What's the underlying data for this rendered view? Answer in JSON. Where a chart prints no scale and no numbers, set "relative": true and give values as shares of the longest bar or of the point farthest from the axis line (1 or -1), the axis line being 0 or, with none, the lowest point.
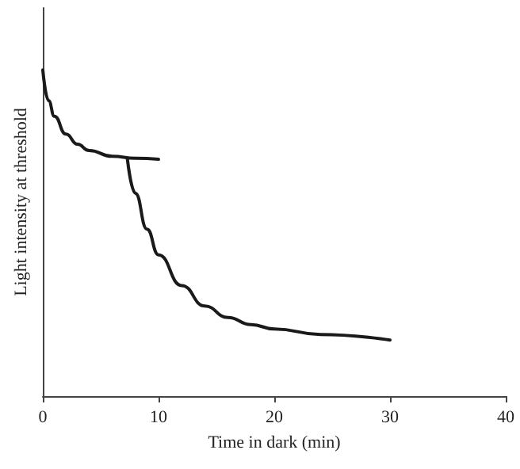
{
  "chart_data": {
    "type": "line",
    "xlabel": "Time in dark (min)",
    "ylabel": "Light intensity at threshold",
    "relative": true,
    "xlim": [
      0,
      40
    ],
    "xticks": [
      0,
      10,
      20,
      30,
      40
    ],
    "grid": false,
    "marker": "none",
    "line_style": "solid",
    "series": [
      {
        "color": "#1a1a1a",
        "x": [
          0,
          0.5,
          1,
          2,
          3,
          4,
          6,
          8,
          10
        ],
        "values": [
          1.0,
          0.906,
          0.858,
          0.803,
          0.772,
          0.753,
          0.735,
          0.729,
          0.726
        ]
      },
      {
        "color": "#1a1a1a",
        "x": [
          7.3,
          8,
          9,
          10,
          12,
          14,
          16,
          18,
          20,
          24,
          30
        ],
        "values": [
          0.729,
          0.622,
          0.512,
          0.433,
          0.339,
          0.276,
          0.241,
          0.219,
          0.206,
          0.189,
          0.172
        ]
      }
    ]
  }
}
